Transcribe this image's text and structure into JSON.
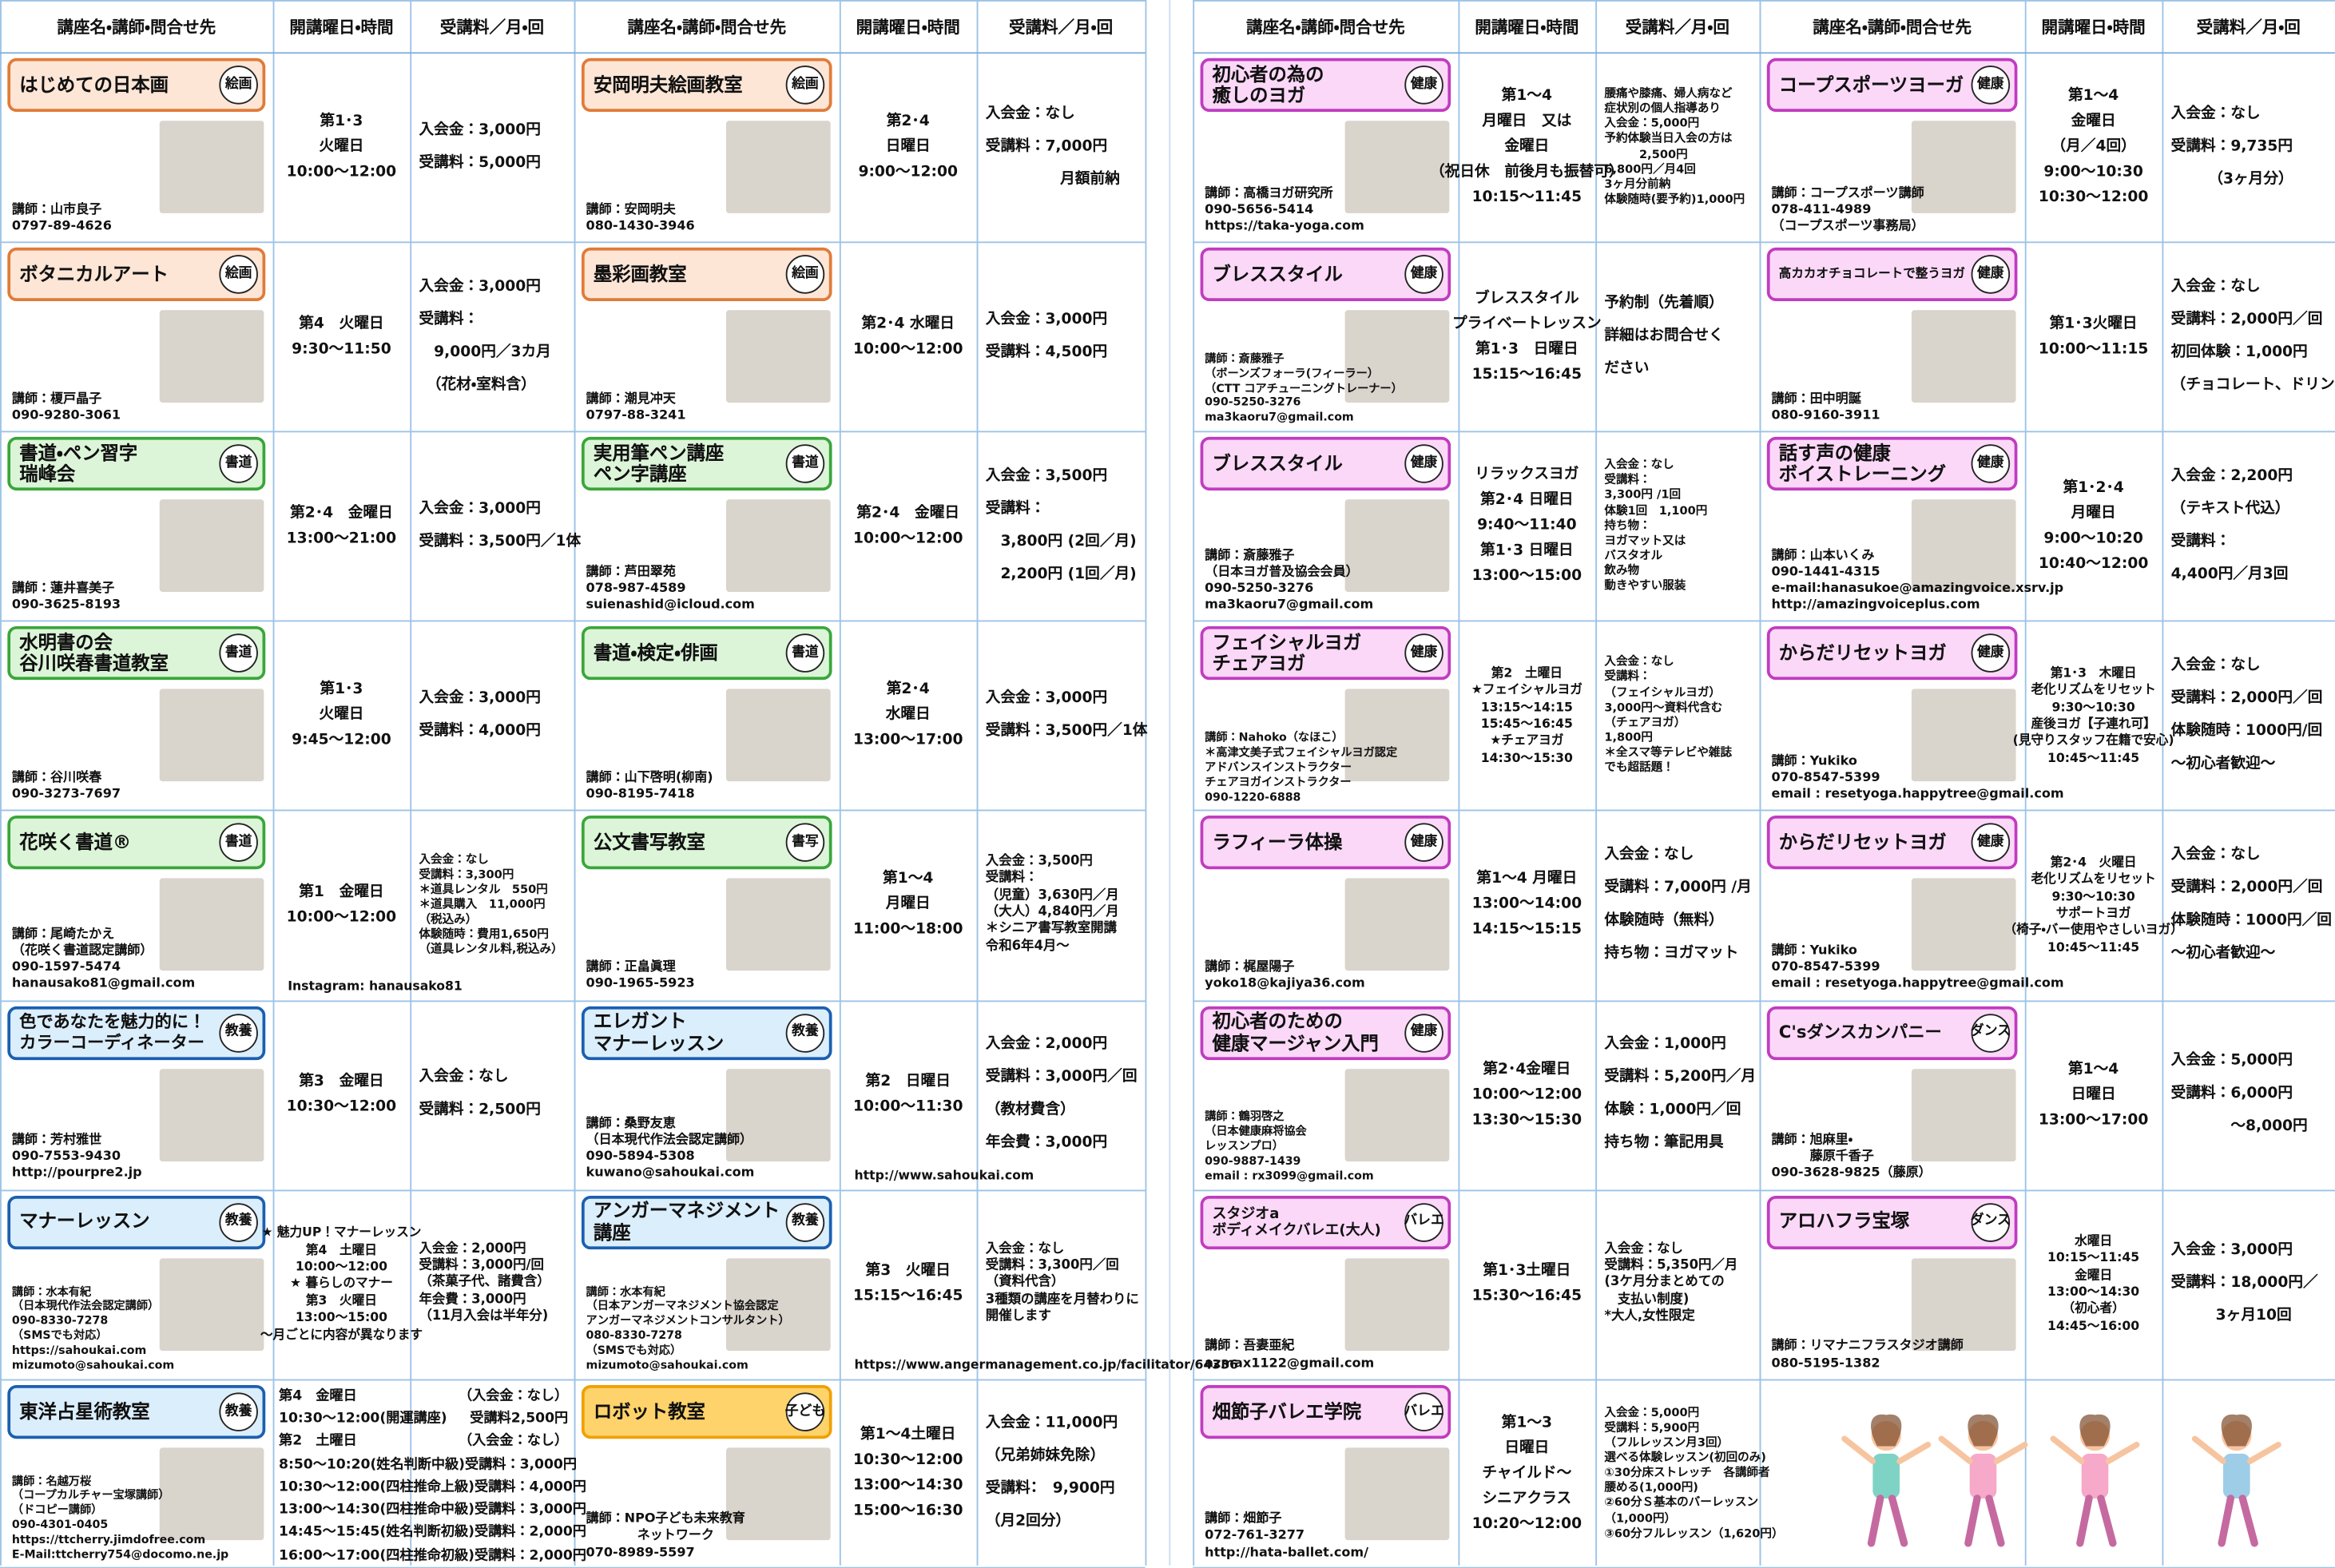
{
  "header": [
    "講座名・講師・問合せ先",
    "開講曜日・時間",
    "受講料／月・回"
  ],
  "courses": [
    {
      "title": "はじめての日本画",
      "tag": "絵画",
      "color": "#e07b39",
      "fill": "#fde6d6",
      "info": [
        "講師：山市良子",
        "0797-89-4626"
      ],
      "schedule": [
        "第1･3",
        "火曜日",
        "10:00～12:00"
      ],
      "fee": [
        "入会金：3,000円",
        "受講料：5,000円"
      ]
    },
    {
      "title": "ボタニカルアート",
      "tag": "絵画",
      "color": "#e07b39",
      "fill": "#fde6d6",
      "info": [
        "講師：榎戸晶子",
        "090-9280-3061"
      ],
      "schedule": [
        "第4　火曜日",
        "9:30～11:50"
      ],
      "fee": [
        "入会金：3,000円",
        "受講料：",
        "　9,000円／3カ月",
        "　（花材・室料含）"
      ]
    },
    {
      "title": "書道・ペン習字\n瑞峰会",
      "tag": "書道",
      "color": "#3aa63a",
      "fill": "#dcf5d8",
      "info": [
        "講師：蓮井喜美子",
        "090-3625-8193"
      ],
      "schedule": [
        "第2･4　金曜日",
        "13:00～21:00"
      ],
      "fee": [
        "入会金：3,000円",
        "受講料：3,500円／1体"
      ]
    },
    {
      "title": "水明書の会\n谷川咲春書道教室",
      "tag": "書道",
      "color": "#3aa63a",
      "fill": "#dcf5d8",
      "info": [
        "講師：谷川咲春",
        "090-3273-7697"
      ],
      "schedule": [
        "第1･3",
        "火曜日",
        "9:45～12:00"
      ],
      "fee": [
        "入会金：3,000円",
        "受講料：4,000円"
      ]
    },
    {
      "title": "花咲く書道®",
      "tag": "書道",
      "color": "#3aa63a",
      "fill": "#dcf5d8",
      "info": [
        "講師：尾崎たかえ",
        "（花咲く書道認定講師）",
        "090-1597-5474",
        "hanausako81@gmail.com"
      ],
      "schedule": [
        "第1　金曜日",
        "10:00～12:00",
        "Instagram:  hanausako81"
      ],
      "fee": [
        "入会金：なし",
        "受講料：3,300円",
        "＊道具レンタル　550円",
        "＊道具購入　11,000円",
        "（税込み）",
        "体験随時：費用1,650円",
        "（道具レンタル料,税込み）"
      ]
    },
    {
      "title": "色であなたを魅力的に！\nカラーコーディネーター",
      "tag": "教養",
      "color": "#1b5fb0",
      "fill": "#dbeefc",
      "info": [
        "講師：芳村雅世",
        "090-7553-9430",
        "http://pourpre2.jp"
      ],
      "schedule": [
        "第3　金曜日",
        "10:30～12:00"
      ],
      "fee": [
        "入会金：なし",
        "受講料：2,500円"
      ]
    },
    {
      "title": "マナーレッスン",
      "tag": "教養",
      "color": "#1b5fb0",
      "fill": "#dbeefc",
      "info": [
        "講師：水本有紀",
        "（日本現代作法会認定講師）",
        "090-8330-7278",
        "（SMSでも対応）",
        "https://sahoukai.com",
        "mizumoto@sahoukai.com"
      ],
      "schedule": [
        "★ 魅力UP！マナーレッスン",
        "第4　土曜日",
        "10:00～12:00",
        "★ 暮らしのマナー",
        "第3　火曜日",
        "13:00～15:00",
        "～月ごとに内容が異なります"
      ],
      "fee": [
        "入会金：2,000円",
        "受講料：3,000円/回",
        "（茶菓子代、諸費含）",
        "年会費：3,000円",
        "（11月入会は半年分)"
      ]
    },
    {
      "title": "東洋占星術教室",
      "tag": "教養",
      "color": "#1b5fb0",
      "fill": "#dbeefc",
      "info": [
        "講師：名越万桜",
        "（コープカルチャー宝塚講師）",
        "（ドコピー講師）",
        "090-4301-0405",
        "https://ttcherry.jimdofree.com",
        "E-Mail:ttcherry754@docomo.ne.jp"
      ],
      "schedule_table": [
        [
          "第4　金曜日",
          "（入会金：なし）"
        ],
        [
          "10:30～12:00(開運講座)",
          "受講料2,500円"
        ],
        [
          "第2　土曜日",
          "（入会金：なし）"
        ],
        [
          "8:50～10:20(姓名判断中級)",
          "受講料：3,000円"
        ],
        [
          "10:30～12:00(四柱推命上級)",
          "受講料：4,000円"
        ],
        [
          "13:00～14:30(四柱推命中級)",
          "受講料：3,000円"
        ],
        [
          "14:45～15:45(姓名判断初級)",
          "受講料：2,000円"
        ],
        [
          "16:00～17:00(四柱推命初級)",
          "受講料：2,000円"
        ]
      ]
    },
    {
      "title": "安岡明夫絵画教室",
      "tag": "絵画",
      "color": "#e07b39",
      "fill": "#fde6d6",
      "info": [
        "講師：安岡明夫",
        "080-1430-3946"
      ],
      "schedule": [
        "第2･4",
        "日曜日",
        "9:00～12:00"
      ],
      "fee": [
        "入会金：なし",
        "受講料：7,000円",
        "　　　　　月額前納"
      ]
    },
    {
      "title": "墨彩画教室",
      "tag": "絵画",
      "color": "#e07b39",
      "fill": "#fde6d6",
      "info": [
        "講師：潮見冲天",
        "0797-88-3241"
      ],
      "schedule": [
        "第2･4 水曜日",
        "10:00～12:00"
      ],
      "fee": [
        "入会金：3,000円",
        "受講料：4,500円"
      ]
    },
    {
      "title": "実用筆ペン講座\nペン字講座",
      "tag": "書道",
      "color": "#3aa63a",
      "fill": "#dcf5d8",
      "info": [
        "講師：芦田翠苑",
        "078-987-4589",
        "suienashid@icloud.com"
      ],
      "schedule": [
        "第2･4　金曜日",
        "10:00～12:00"
      ],
      "fee": [
        "入会金：3,500円",
        "受講料：",
        "　3,800円 (2回／月)",
        "　2,200円 (1回／月)"
      ]
    },
    {
      "title": "書道・検定・俳画",
      "tag": "書道",
      "color": "#3aa63a",
      "fill": "#dcf5d8",
      "info": [
        "講師：山下啓明(柳南)",
        "090-8195-7418"
      ],
      "schedule": [
        "第2･4",
        "水曜日",
        "13:00～17:00"
      ],
      "fee": [
        "入会金：3,000円",
        "受講料：3,500円／1体"
      ]
    },
    {
      "title": "公文書写教室",
      "tag": "書写",
      "color": "#3aa63a",
      "fill": "#dcf5d8",
      "info": [
        "講師：正畠眞理",
        "090-1965-5923"
      ],
      "schedule": [
        "第1～4",
        "月曜日",
        "11:00～18:00"
      ],
      "fee": [
        "入会金：3,500円",
        "受講料：",
        "（児童）3,630円／月",
        "（大人）4,840円／月",
        "＊シニア書写教室開講",
        "令和6年4月～"
      ]
    },
    {
      "title": "エレガント\nマナーレッスン",
      "tag": "教養",
      "color": "#1b5fb0",
      "fill": "#dbeefc",
      "info": [
        "講師：桑野友恵",
        "（日本現代作法会認定講師）",
        "090-5894-5308",
        "kuwano@sahoukai.com"
      ],
      "schedule": [
        "第2　日曜日",
        "10:00～11:30",
        "http://www.sahoukai.com"
      ],
      "fee": [
        "入会金：2,000円",
        "受講料：3,000円／回",
        "（教材費含）",
        "年会費：3,000円"
      ]
    },
    {
      "title": "アンガーマネジメント\n講座",
      "tag": "教養",
      "color": "#1b5fb0",
      "fill": "#dbeefc",
      "info": [
        "講師：水本有紀",
        "（日本アンガーマネジメント協会認定",
        "アンガーマネジメントコンサルタント）",
        "080-8330-7278",
        "（SMSでも対応）",
        "mizumoto@sahoukai.com"
      ],
      "schedule": [
        "第3　火曜日",
        "15:15～16:45",
        "https://www.angermanagement.co.jp/facilitator/64336"
      ],
      "fee": [
        "入会金：なし",
        "受講料：3,300円／回",
        "（資料代含）",
        "3種類の講座を月替わりに",
        "開催します"
      ]
    },
    {
      "title": "ロボット教室",
      "tag": "子ども",
      "color": "#f0a000",
      "fill": "#ffd36b",
      "info": [
        "講師：NPO子ども未来教育",
        "　　　　ネットワーク",
        "070-8989-5597"
      ],
      "schedule": [
        "第1～4土曜日",
        "10:30～12:00",
        "13:00～14:30",
        "15:00～16:30"
      ],
      "fee": [
        "入会金：11,000円",
        "（兄弟姉妹免除）",
        "受講料：　9,900円",
        "（月2回分）"
      ]
    },
    {
      "title": "初心者の為の\n癒しのヨガ",
      "tag": "健康",
      "color": "#c03cc0",
      "fill": "#fbd8f8",
      "info": [
        "講師：高橋ヨガ研究所",
        "090-5656-5414",
        "https://taka-yoga.com"
      ],
      "schedule": [
        "第1～4",
        "月曜日　又は",
        "金曜日",
        "（祝日休　前後月も振替可）",
        "10:15～11:45"
      ],
      "fee": [
        "腰痛や膝痛、婦人病など",
        "症状別の個人指導あり",
        "入会金：5,000円",
        "予約体験当日入会の方は",
        "　　　2,500円",
        "6,800円／月4回",
        "3ヶ月分前納",
        "体験随時(要予約)1,000円"
      ]
    },
    {
      "title": "ブレススタイル",
      "tag": "健康",
      "color": "#c03cc0",
      "fill": "#fbd8f8",
      "info": [
        "講師：斎藤雅子",
        "（ボーンズフォーラ(フィーラー）",
        "（CTT コアチューニングトレーナー）",
        "090-5250-3276",
        "ma3kaoru7@gmail.com"
      ],
      "schedule": [
        "ブレススタイル",
        "プライベートレッスン",
        "第1･3　日曜日",
        "15:15～16:45"
      ],
      "fee": [
        "予約制（先着順）",
        "詳細はお問合せく",
        "ださい"
      ]
    },
    {
      "title": "ブレススタイル",
      "tag": "健康",
      "color": "#c03cc0",
      "fill": "#fbd8f8",
      "info": [
        "講師：斎藤雅子",
        "（日本ヨガ普及協会会員）",
        "090-5250-3276",
        "ma3kaoru7@gmail.com"
      ],
      "schedule": [
        "リラックスヨガ",
        "第2･4 日曜日",
        "9:40～11:40",
        "第1･3 日曜日",
        "13:00～15:00"
      ],
      "fee": [
        "入会金：なし",
        "受講料：",
        "3,300円 /1回",
        "体験1回　1,100円",
        "持ち物：",
        "ヨガマット又は",
        "バスタオル",
        "飲み物",
        "動きやすい服装"
      ]
    },
    {
      "title": "フェイシャルヨガ\nチェアヨガ",
      "tag": "健康",
      "color": "#c03cc0",
      "fill": "#fbd8f8",
      "info": [
        "講師：Nahoko（なほこ）",
        "＊高津文美子式フェイシャルヨガ認定",
        "アドバンスインストラクター",
        "チェアヨガインストラクター",
        "090-1220-6888"
      ],
      "schedule": [
        "第2　土曜日",
        "★フェイシャルヨガ",
        "13:15～14:15",
        "15:45～16:45",
        "★チェアヨガ",
        "14:30～15:30"
      ],
      "fee": [
        "入会金：なし",
        "受講料：",
        "（フェイシャルヨガ）",
        "3,000円～資料代含む",
        "（チェアヨガ）",
        "1,800円",
        "＊全スマ等テレビや雑誌",
        "でも超話題！"
      ]
    },
    {
      "title": "ラフィーラ体操",
      "tag": "健康",
      "color": "#c03cc0",
      "fill": "#fbd8f8",
      "info": [
        "講師：梶屋陽子",
        "yoko18@kajiya36.com"
      ],
      "schedule": [
        "第1～4 月曜日",
        "13:00～14:00",
        "14:15～15:15"
      ],
      "fee": [
        "入会金：なし",
        "受講料：7,000円 /月",
        "体験随時（無料）",
        "持ち物：ヨガマット"
      ]
    },
    {
      "title": "初心者のための\n健康マージャン入門",
      "tag": "健康",
      "color": "#c03cc0",
      "fill": "#fbd8f8",
      "info": [
        "講師：鶴羽啓之",
        "（日本健康麻将協会",
        "レッスンプロ）",
        "090-9887-1439",
        "email : rx3099@gmail.com"
      ],
      "schedule": [
        "第2･4金曜日",
        "10:00～12:00",
        "13:30～15:30"
      ],
      "fee": [
        "入会金：1,000円",
        "受講料：5,200円／月",
        "体験：1,000円／回",
        "持ち物：筆記用具"
      ]
    },
    {
      "title": "スタジオa\nボディメイクバレエ(大人)",
      "tag": "バレエ",
      "color": "#c03cc0",
      "fill": "#fbd8f8",
      "info": [
        "講師：吾妻亜紀",
        "azmax1122@gmail.com"
      ],
      "schedule": [
        "第1･3土曜日",
        "15:30～16:45"
      ],
      "fee": [
        "入会金：なし",
        "受講料：5,350円／月",
        "(3ケ月分まとめての",
        "　支払い制度)",
        "*大人,女性限定"
      ]
    },
    {
      "title": "畑節子バレエ学院",
      "tag": "バレエ",
      "color": "#c03cc0",
      "fill": "#fbd8f8",
      "info": [
        "講師：畑節子",
        "072-761-3277",
        "http://hata-ballet.com/"
      ],
      "schedule": [
        "第1～3",
        "日曜日",
        "チャイルド～",
        "シニアクラス",
        "10:20～12:00"
      ],
      "fee": [
        "入会金：5,000円",
        "受講料：5,900円",
        "（フルレッスン月3回）",
        "選べる体験レッスン(初回のみ)",
        "①30分床ストレッチ　各講師者",
        "腰める(1,000円)",
        "②60分Ｓ基本のバーレッスン",
        "（1,000円）",
        "③60分フルレッスン（1,620円）"
      ]
    },
    {
      "title": "コープスポーツヨーガ",
      "tag": "健康",
      "color": "#c03cc0",
      "fill": "#fbd8f8",
      "info": [
        "講師：コープスポーツ講師",
        "078-411-4989",
        "（コープスポーツ事務局）"
      ],
      "schedule": [
        "第1～4",
        "金曜日",
        "（月／4回）",
        "9:00～10:30",
        "10:30～12:00"
      ],
      "fee": [
        "入会金：なし",
        "受講料：9,735円",
        "　　　（3ヶ月分）"
      ]
    },
    {
      "title": "高カカオチョコレートで整うヨガ",
      "tag": "健康",
      "color": "#c03cc0",
      "fill": "#fbd8f8",
      "info": [
        "講師：田中明誕",
        "080-9160-3911"
      ],
      "schedule": [
        "第1･3火曜日",
        "10:00～11:15"
      ],
      "fee": [
        "入会金：なし",
        "受講料：2,000円／回",
        "初回体験：1,000円",
        "（チョコレート、ドリンク付き）"
      ]
    },
    {
      "title": "話す声の健康\nボイストレーニング",
      "tag": "健康",
      "color": "#c03cc0",
      "fill": "#fbd8f8",
      "info": [
        "講師：山本いくみ",
        "090-1441-4315",
        "e-mail:hanasukoe@amazingvoice.xsrv.jp",
        "http://amazingvoiceplus.com"
      ],
      "schedule": [
        "第1･2･4",
        "月曜日",
        "9:00～10:20",
        "10:40～12:00"
      ],
      "fee": [
        "入会金：2,200円",
        "（テキスト代込）",
        "受講料：",
        "4,400円／月3回"
      ]
    },
    {
      "title": "からだリセットヨガ",
      "tag": "健康",
      "color": "#c03cc0",
      "fill": "#fbd8f8",
      "info": [
        "講師：Yukiko",
        "070-8547-5399",
        "email : resetyoga.happytree@gmail.com"
      ],
      "schedule": [
        "第1･3　木曜日",
        "老化リズムをリセット",
        "9:30～10:30",
        "産後ヨガ【子連れ可】",
        "(見守りスタッフ在籍で安心)",
        "10:45～11:45"
      ],
      "fee": [
        "入会金：なし",
        "受講料：2,000円／回",
        "体験随時：1000円/回",
        "～初心者歓迎～"
      ]
    },
    {
      "title": "からだリセットヨガ",
      "tag": "健康",
      "color": "#c03cc0",
      "fill": "#fbd8f8",
      "info": [
        "講師：Yukiko",
        "070-8547-5399",
        "email : resetyoga.happytree@gmail.com"
      ],
      "schedule": [
        "第2･4　火曜日",
        "老化リズムをリセット",
        "9:30～10:30",
        "サポートヨガ",
        "（椅子・バー使用やさしいヨガ）",
        "10:45～11:45"
      ],
      "fee": [
        "入会金：なし",
        "受講料：2,000円／回",
        "体験随時：1000円／回",
        "～初心者歓迎～"
      ]
    },
    {
      "title": "C'sダンスカンパニー",
      "tag": "ダンス",
      "color": "#c03cc0",
      "fill": "#fbd8f8",
      "info": [
        "講師：旭麻里・",
        "　　　藤原千香子",
        "090-3628-9825（藤原）"
      ],
      "schedule": [
        "第1～4",
        "日曜日",
        "13:00～17:00"
      ],
      "fee": [
        "入会金：5,000円",
        "受講料：6,000円",
        "　　　　～8,000円"
      ]
    },
    {
      "title": "アロハフラ宝塚",
      "tag": "ダンス",
      "color": "#c03cc0",
      "fill": "#fbd8f8",
      "info": [
        "講師：リマナニフラスタジオ講師",
        "080-5195-1382"
      ],
      "schedule": [
        "水曜日",
        "10:15～11:45",
        "金曜日",
        "13:00～14:30",
        "（初心者）",
        "14:45～16:00"
      ],
      "fee": [
        "入会金：3,000円",
        "受講料：18,000円／",
        "　　　3ヶ月10回"
      ]
    }
  ]
}
